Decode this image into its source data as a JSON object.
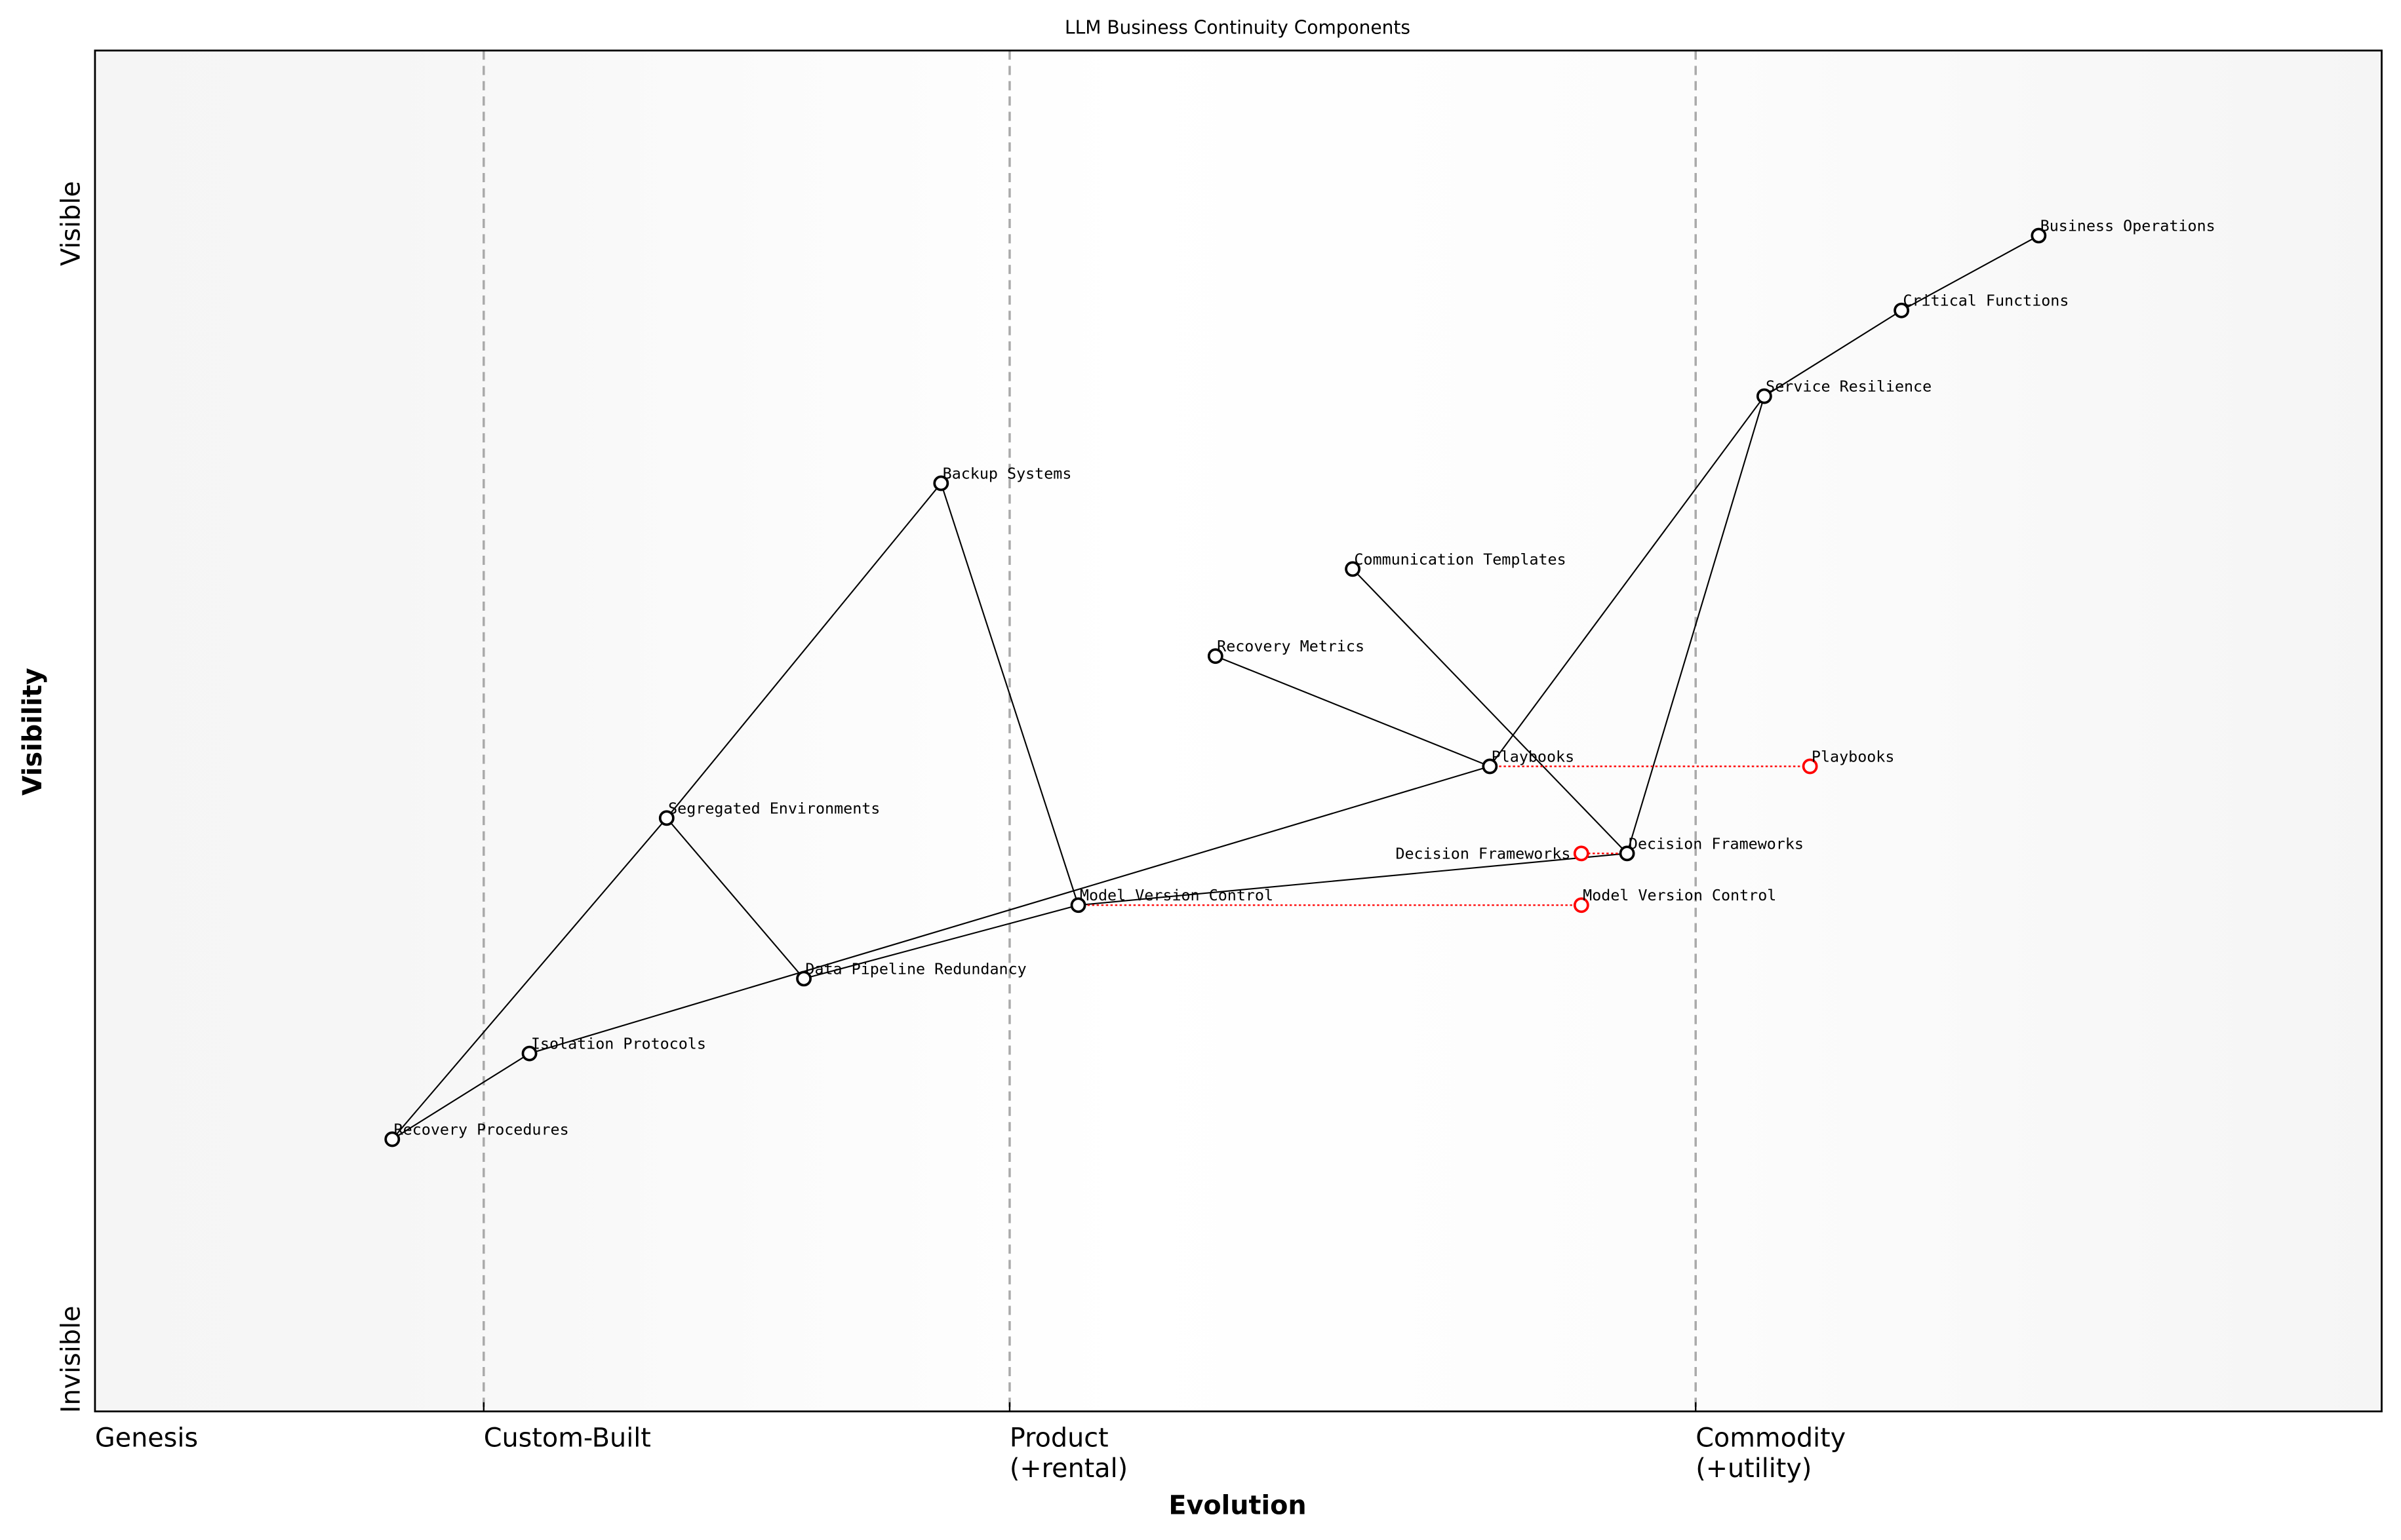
{
  "title": "LLM Business Continuity Components",
  "xlabel": "Evolution",
  "ylabel": "Visibility",
  "y_ticks": {
    "top": "Visible",
    "bottom": "Invisible"
  },
  "x_stages": [
    {
      "label": "Genesis",
      "sub": "",
      "at": 0.0
    },
    {
      "label": "Custom-Built",
      "sub": "",
      "at": 0.17
    },
    {
      "label": "Product",
      "sub": "(+rental)",
      "at": 0.4
    },
    {
      "label": "Commodity",
      "sub": "(+utility)",
      "at": 0.7
    }
  ],
  "colors": {
    "node": "#000000",
    "evolved": "#ff0000",
    "stage_line": "#aaaaaa"
  },
  "components": [
    {
      "name": "Business Operations",
      "evolution": 0.85,
      "visibility": 0.864
    },
    {
      "name": "Critical Functions",
      "evolution": 0.79,
      "visibility": 0.809
    },
    {
      "name": "Service Resilience",
      "evolution": 0.73,
      "visibility": 0.746
    },
    {
      "name": "Backup Systems",
      "evolution": 0.37,
      "visibility": 0.682
    },
    {
      "name": "Communication Templates",
      "evolution": 0.55,
      "visibility": 0.619
    },
    {
      "name": "Recovery Metrics",
      "evolution": 0.49,
      "visibility": 0.555
    },
    {
      "name": "Playbooks",
      "evolution": 0.61,
      "visibility": 0.474
    },
    {
      "name": "Segregated Environments",
      "evolution": 0.25,
      "visibility": 0.436
    },
    {
      "name": "Decision Frameworks",
      "evolution": 0.67,
      "visibility": 0.41
    },
    {
      "name": "Model Version Control",
      "evolution": 0.43,
      "visibility": 0.372
    },
    {
      "name": "Data Pipeline Redundancy",
      "evolution": 0.31,
      "visibility": 0.318
    },
    {
      "name": "Isolation Protocols",
      "evolution": 0.19,
      "visibility": 0.263
    },
    {
      "name": "Recovery Procedures",
      "evolution": 0.13,
      "visibility": 0.2
    }
  ],
  "evolved": [
    {
      "name": "Playbooks",
      "evolution": 0.75,
      "visibility": 0.474
    },
    {
      "name": "Decision Frameworks",
      "evolution": 0.65,
      "visibility": 0.41
    },
    {
      "name": "Model Version Control",
      "evolution": 0.65,
      "visibility": 0.372
    }
  ],
  "links": [
    [
      "Business Operations",
      "Critical Functions"
    ],
    [
      "Critical Functions",
      "Service Resilience"
    ],
    [
      "Service Resilience",
      "Playbooks"
    ],
    [
      "Service Resilience",
      "Decision Frameworks"
    ],
    [
      "Playbooks",
      "Isolation Protocols"
    ],
    [
      "Recovery Metrics",
      "Playbooks"
    ],
    [
      "Communication Templates",
      "Decision Frameworks"
    ],
    [
      "Backup Systems",
      "Segregated Environments"
    ],
    [
      "Segregated Environments",
      "Recovery Procedures"
    ],
    [
      "Segregated Environments",
      "Data Pipeline Redundancy"
    ],
    [
      "Backup Systems",
      "Model Version Control"
    ],
    [
      "Model Version Control",
      "Decision Frameworks"
    ],
    [
      "Data Pipeline Redundancy",
      "Model Version Control"
    ],
    [
      "Recovery Procedures",
      "Isolation Protocols"
    ]
  ]
}
